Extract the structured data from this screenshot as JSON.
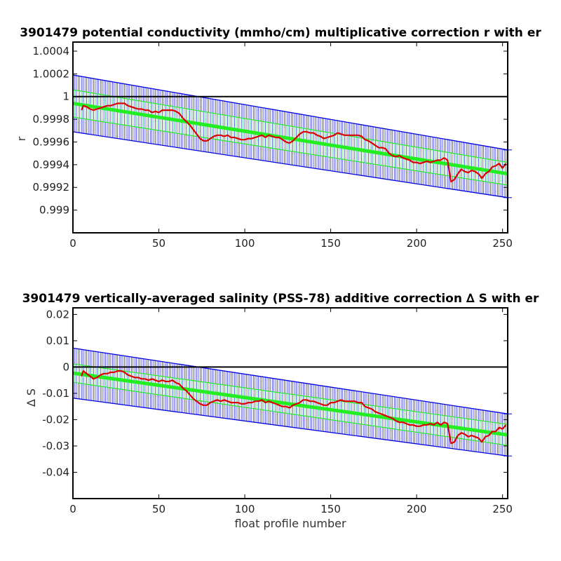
{
  "colors": {
    "error_band": "#0000dd",
    "fit_line": "#22ee22",
    "fit_error": "#66ff66",
    "data_line": "#dd0000",
    "zero_line": "#000000"
  },
  "chart_data": [
    {
      "type": "line",
      "title": "3901479 potential conductivity (mmho/cm) multiplicative correction r with er",
      "xlabel": "",
      "ylabel": "r",
      "xlim": [
        0,
        253
      ],
      "ylim": [
        0.9988,
        1.00048
      ],
      "xticks": [
        0,
        50,
        100,
        150,
        200,
        250
      ],
      "xtick_labels": [
        "0",
        "50",
        "100",
        "150",
        "200",
        "250"
      ],
      "yticks": [
        0.999,
        0.9992,
        0.9994,
        0.9996,
        0.9998,
        1.0,
        1.0002,
        1.0004
      ],
      "ytick_labels": [
        "0.999",
        "0.9992",
        "0.9994",
        "0.9996",
        "0.9998",
        "1",
        "1.0002",
        "1.0004"
      ],
      "reference_line": 1.0,
      "fit": {
        "x": [
          0,
          253
        ],
        "y": [
          0.99994,
          0.99932
        ]
      },
      "fit_error": {
        "x": [
          0,
          253
        ],
        "lower": [
          0.99982,
          0.99922
        ],
        "upper": [
          1.00006,
          0.99942
        ]
      },
      "error_band": {
        "x": [
          0,
          253
        ],
        "lower": [
          0.99969,
          0.99911
        ],
        "upper": [
          1.00019,
          0.99953
        ]
      },
      "series": [
        {
          "x": [
            5,
            6,
            8,
            10,
            12,
            14,
            16,
            18,
            20,
            22,
            24,
            26,
            28,
            30,
            32,
            34,
            36,
            38,
            40,
            42,
            44,
            46,
            48,
            50,
            52,
            54,
            56,
            58,
            60,
            62,
            64,
            66,
            68,
            70,
            72,
            74,
            76,
            78,
            80,
            82,
            84,
            86,
            88,
            90,
            92,
            94,
            96,
            98,
            100,
            102,
            104,
            106,
            108,
            110,
            112,
            114,
            116,
            118,
            120,
            122,
            124,
            126,
            128,
            130,
            132,
            134,
            136,
            138,
            140,
            142,
            144,
            146,
            148,
            150,
            152,
            154,
            156,
            158,
            160,
            162,
            164,
            166,
            168,
            170,
            172,
            174,
            176,
            178,
            180,
            182,
            184,
            186,
            188,
            190,
            192,
            194,
            196,
            198,
            200,
            202,
            204,
            206,
            208,
            210,
            212,
            214,
            216,
            218,
            220,
            222,
            224,
            226,
            228,
            230,
            232,
            234,
            236,
            238,
            240,
            242,
            244,
            246,
            248,
            250,
            252
          ],
          "y": [
            0.99988,
            0.99992,
            0.99991,
            0.99989,
            0.99988,
            0.99989,
            0.9999,
            0.99991,
            0.99992,
            0.99992,
            0.99993,
            0.99994,
            0.99994,
            0.99994,
            0.99992,
            0.99991,
            0.9999,
            0.99989,
            0.99989,
            0.99988,
            0.99988,
            0.99986,
            0.99987,
            0.99986,
            0.99988,
            0.99988,
            0.99988,
            0.99988,
            0.99987,
            0.99985,
            0.99981,
            0.99978,
            0.99975,
            0.99971,
            0.99967,
            0.99963,
            0.99961,
            0.99961,
            0.99963,
            0.99965,
            0.99966,
            0.99966,
            0.99965,
            0.99966,
            0.99964,
            0.99964,
            0.99963,
            0.99962,
            0.99962,
            0.99963,
            0.99963,
            0.99964,
            0.99965,
            0.99966,
            0.99964,
            0.99966,
            0.99965,
            0.99964,
            0.99964,
            0.99962,
            0.9996,
            0.99959,
            0.99961,
            0.99964,
            0.99967,
            0.99969,
            0.99969,
            0.99968,
            0.99968,
            0.99966,
            0.99965,
            0.99963,
            0.99964,
            0.99965,
            0.99966,
            0.99968,
            0.99967,
            0.99966,
            0.99966,
            0.99966,
            0.99966,
            0.99966,
            0.99965,
            0.99962,
            0.99961,
            0.99959,
            0.99957,
            0.99955,
            0.99955,
            0.99954,
            0.9995,
            0.99948,
            0.99947,
            0.99948,
            0.99946,
            0.99945,
            0.99944,
            0.99942,
            0.99942,
            0.99941,
            0.99942,
            0.99943,
            0.99942,
            0.99943,
            0.99944,
            0.99944,
            0.99946,
            0.99944,
            0.99925,
            0.99927,
            0.99932,
            0.99936,
            0.99934,
            0.99933,
            0.99935,
            0.99934,
            0.99932,
            0.99928,
            0.99932,
            0.99934,
            0.99938,
            0.99939,
            0.99941,
            0.99937,
            0.99941
          ]
        }
      ]
    },
    {
      "type": "line",
      "title": "3901479 vertically-averaged salinity (PSS-78) additive correction ∆ S with er",
      "xlabel": "float profile number",
      "ylabel": "∆ S",
      "xlim": [
        0,
        253
      ],
      "ylim": [
        -0.05,
        0.0225
      ],
      "xticks": [
        0,
        50,
        100,
        150,
        200,
        250
      ],
      "xtick_labels": [
        "0",
        "50",
        "100",
        "150",
        "200",
        "250"
      ],
      "yticks": [
        -0.04,
        -0.03,
        -0.02,
        -0.01,
        0,
        0.01,
        0.02
      ],
      "ytick_labels": [
        "-0.04",
        "-0.03",
        "-0.02",
        "-0.01",
        "0",
        "0.01",
        "0.02"
      ],
      "reference_line": 0,
      "fit": {
        "x": [
          0,
          253
        ],
        "y": [
          -0.0023,
          -0.0258
        ]
      },
      "fit_error": {
        "x": [
          0,
          253
        ],
        "lower": [
          -0.0058,
          -0.0298
        ],
        "upper": [
          0.0012,
          -0.0218
        ]
      },
      "error_band": {
        "x": [
          0,
          253
        ],
        "lower": [
          -0.0118,
          -0.0338
        ],
        "upper": [
          0.0072,
          -0.0178
        ]
      },
      "series": [
        {
          "x": [
            5,
            6,
            8,
            10,
            12,
            14,
            16,
            18,
            20,
            22,
            24,
            26,
            28,
            30,
            32,
            34,
            36,
            38,
            40,
            42,
            44,
            46,
            48,
            50,
            52,
            54,
            56,
            58,
            60,
            62,
            64,
            66,
            68,
            70,
            72,
            74,
            76,
            78,
            80,
            82,
            84,
            86,
            88,
            90,
            92,
            94,
            96,
            98,
            100,
            102,
            104,
            106,
            108,
            110,
            112,
            114,
            116,
            118,
            120,
            122,
            124,
            126,
            128,
            130,
            132,
            134,
            136,
            138,
            140,
            142,
            144,
            146,
            148,
            150,
            152,
            154,
            156,
            158,
            160,
            162,
            164,
            166,
            168,
            170,
            172,
            174,
            176,
            178,
            180,
            182,
            184,
            186,
            188,
            190,
            192,
            194,
            196,
            198,
            200,
            202,
            204,
            206,
            208,
            210,
            212,
            214,
            216,
            218,
            220,
            222,
            224,
            226,
            228,
            230,
            232,
            234,
            236,
            238,
            240,
            242,
            244,
            246,
            248,
            250,
            252
          ],
          "y": [
            -0.0035,
            -0.0015,
            -0.0025,
            -0.0035,
            -0.0045,
            -0.004,
            -0.003,
            -0.0025,
            -0.0025,
            -0.002,
            -0.002,
            -0.0015,
            -0.0015,
            -0.002,
            -0.003,
            -0.0035,
            -0.004,
            -0.004,
            -0.0045,
            -0.0045,
            -0.005,
            -0.0045,
            -0.005,
            -0.0055,
            -0.005,
            -0.0055,
            -0.0055,
            -0.005,
            -0.006,
            -0.0065,
            -0.008,
            -0.009,
            -0.0105,
            -0.012,
            -0.013,
            -0.014,
            -0.0145,
            -0.0145,
            -0.0135,
            -0.013,
            -0.0125,
            -0.013,
            -0.0125,
            -0.013,
            -0.0135,
            -0.0135,
            -0.0135,
            -0.014,
            -0.014,
            -0.0135,
            -0.0135,
            -0.013,
            -0.013,
            -0.0125,
            -0.0135,
            -0.013,
            -0.0135,
            -0.014,
            -0.0145,
            -0.015,
            -0.015,
            -0.0155,
            -0.0145,
            -0.014,
            -0.0135,
            -0.0125,
            -0.0125,
            -0.013,
            -0.013,
            -0.0135,
            -0.014,
            -0.0145,
            -0.0145,
            -0.0135,
            -0.0135,
            -0.013,
            -0.0125,
            -0.013,
            -0.013,
            -0.013,
            -0.013,
            -0.0135,
            -0.0135,
            -0.015,
            -0.0155,
            -0.016,
            -0.017,
            -0.0175,
            -0.018,
            -0.0185,
            -0.019,
            -0.0195,
            -0.0205,
            -0.021,
            -0.021,
            -0.0215,
            -0.022,
            -0.022,
            -0.0225,
            -0.0225,
            -0.022,
            -0.022,
            -0.0215,
            -0.022,
            -0.021,
            -0.022,
            -0.021,
            -0.0215,
            -0.029,
            -0.0285,
            -0.026,
            -0.025,
            -0.0255,
            -0.0265,
            -0.026,
            -0.0265,
            -0.027,
            -0.0285,
            -0.0265,
            -0.026,
            -0.0245,
            -0.0245,
            -0.023,
            -0.0235,
            -0.022
          ]
        }
      ]
    }
  ]
}
